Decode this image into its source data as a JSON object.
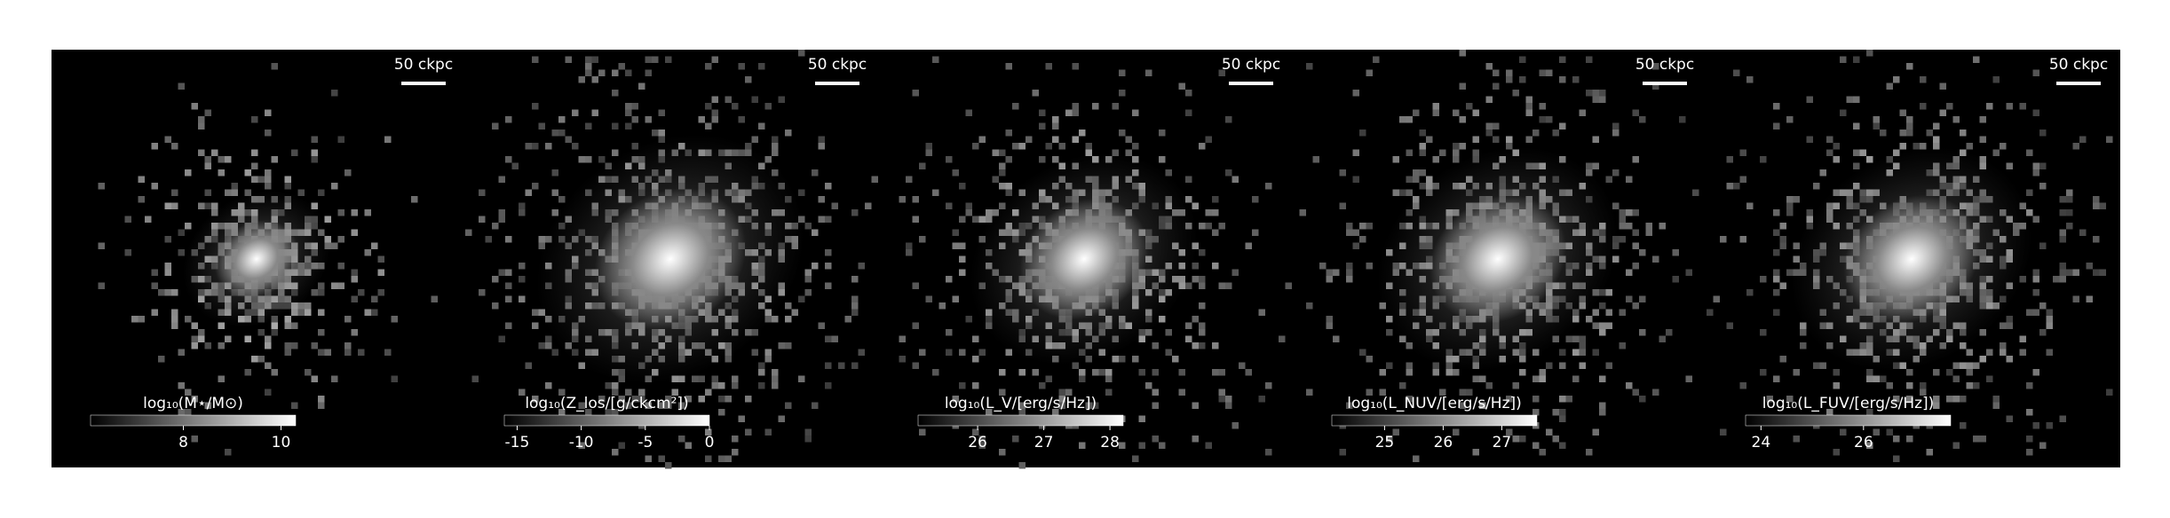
{
  "chart_data": [
    {
      "type": "image",
      "colorbar_label": "log₁₀(M⋆/M⊙)",
      "scale_bar_label": "50 ckpc",
      "xlim": [
        6.1,
        10.3
      ],
      "xticks": [
        8,
        10
      ],
      "spread": 0.55
    },
    {
      "type": "image",
      "colorbar_label": "log₁₀(Z_los/[g/ckcm²])",
      "scale_bar_label": "50 ckpc",
      "xlim": [
        -16,
        0
      ],
      "xticks": [
        -15,
        -10,
        -5,
        0
      ],
      "spread": 1.0
    },
    {
      "type": "image",
      "colorbar_label": "log₁₀(L_V/[erg/s/Hz])",
      "scale_bar_label": "50 ckpc",
      "xlim": [
        25.1,
        28.2
      ],
      "xticks": [
        26,
        27,
        28
      ],
      "spread": 0.85
    },
    {
      "type": "image",
      "colorbar_label": "log₁₀(L_NUV/[erg/s/Hz])",
      "scale_bar_label": "50 ckpc",
      "xlim": [
        24.1,
        27.6
      ],
      "xticks": [
        25,
        26,
        27
      ],
      "spread": 0.9
    },
    {
      "type": "image",
      "colorbar_label": "log₁₀(L_FUV/[erg/s/Hz])",
      "scale_bar_label": "50 ckpc",
      "xlim": [
        23.7,
        27.7
      ],
      "xticks": [
        24,
        26
      ],
      "spread": 0.9
    }
  ]
}
